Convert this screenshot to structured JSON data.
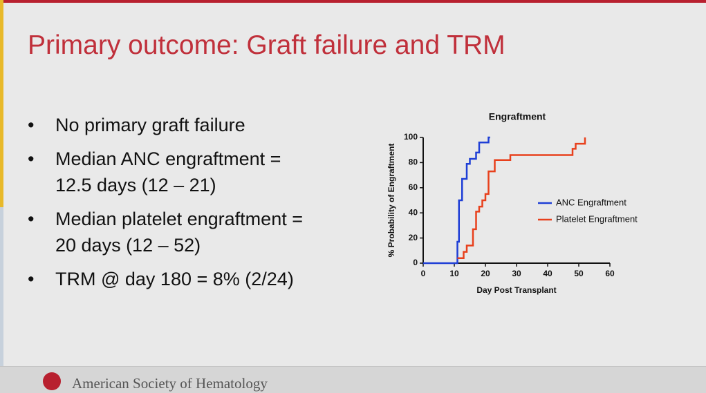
{
  "title": "Primary outcome: Graft failure and TRM",
  "bullets": [
    {
      "lines": [
        "No primary graft failure"
      ]
    },
    {
      "lines": [
        "Median ANC engraftment =",
        "12.5 days (12 – 21)"
      ]
    },
    {
      "lines": [
        "Median platelet engraftment =",
        "20 days (12 – 52)"
      ]
    },
    {
      "lines": [
        "TRM @ day 180 = 8% (2/24)"
      ]
    }
  ],
  "footer": "American Society of Hematology",
  "chart_data": {
    "type": "step",
    "title": "Engraftment",
    "x_label": "Day Post Transplant",
    "y_label": "% Probability of Engraftment",
    "xlim": [
      0,
      60
    ],
    "xticks": [
      0,
      10,
      20,
      30,
      40,
      50,
      60
    ],
    "ylim": [
      0,
      100
    ],
    "yticks": [
      0,
      20,
      40,
      60,
      80,
      100
    ],
    "legend": "right",
    "series": [
      {
        "name": "ANC Engraftment",
        "color": "#1f3fd6",
        "x": [
          0,
          11,
          11.5,
          12.5,
          14,
          15,
          17,
          18,
          21,
          21.5
        ],
        "values": [
          0,
          17,
          50,
          67,
          79,
          83,
          88,
          96,
          100,
          100
        ]
      },
      {
        "name": "Platelet Engraftment",
        "color": "#e8401c",
        "x": [
          11,
          13,
          14,
          16,
          17,
          18,
          19,
          20,
          21,
          23,
          28,
          48,
          49,
          52
        ],
        "values": [
          4,
          9,
          14,
          27,
          41,
          45,
          50,
          55,
          73,
          82,
          86,
          91,
          95,
          100
        ]
      }
    ]
  }
}
